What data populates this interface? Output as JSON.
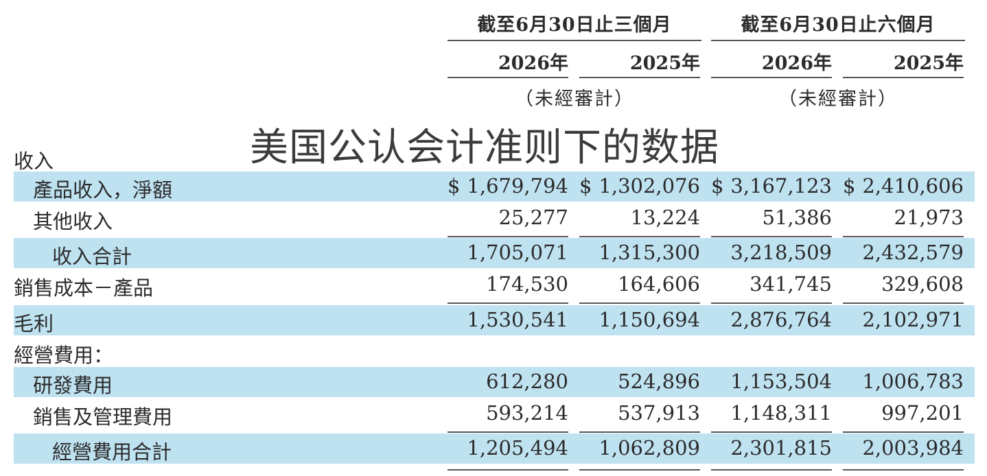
{
  "header": {
    "periods": [
      "截至6月30日止三個月",
      "截至6月30日止六個月"
    ],
    "years": [
      "2026年",
      "2025年",
      "2026年",
      "2025年"
    ],
    "unaudited": "（未經審計）"
  },
  "overlay_title": "美国公认会计准则下的数据",
  "currency_symbol": "$",
  "rows": [
    {
      "label": "收入",
      "values": [
        "",
        "",
        "",
        ""
      ]
    },
    {
      "label": "產品收入，淨額",
      "values": [
        "1,679,794",
        "1,302,076",
        "3,167,123",
        "2,410,606"
      ]
    },
    {
      "label": "其他收入",
      "values": [
        "25,277",
        "13,224",
        "51,386",
        "21,973"
      ]
    },
    {
      "label": "收入合計",
      "values": [
        "1,705,071",
        "1,315,300",
        "3,218,509",
        "2,432,579"
      ]
    },
    {
      "label": "銷售成本－產品",
      "values": [
        "174,530",
        "164,606",
        "341,745",
        "329,608"
      ]
    },
    {
      "label": "毛利",
      "values": [
        "1,530,541",
        "1,150,694",
        "2,876,764",
        "2,102,971"
      ]
    },
    {
      "label": "經營費用：",
      "values": [
        "",
        "",
        "",
        ""
      ]
    },
    {
      "label": "研發費用",
      "values": [
        "612,280",
        "524,896",
        "1,153,504",
        "1,006,783"
      ]
    },
    {
      "label": "銷售及管理費用",
      "values": [
        "593,214",
        "537,913",
        "1,148,311",
        "997,201"
      ]
    },
    {
      "label": "經營費用合計",
      "values": [
        "1,205,494",
        "1,062,809",
        "2,301,815",
        "2,003,984"
      ]
    }
  ]
}
